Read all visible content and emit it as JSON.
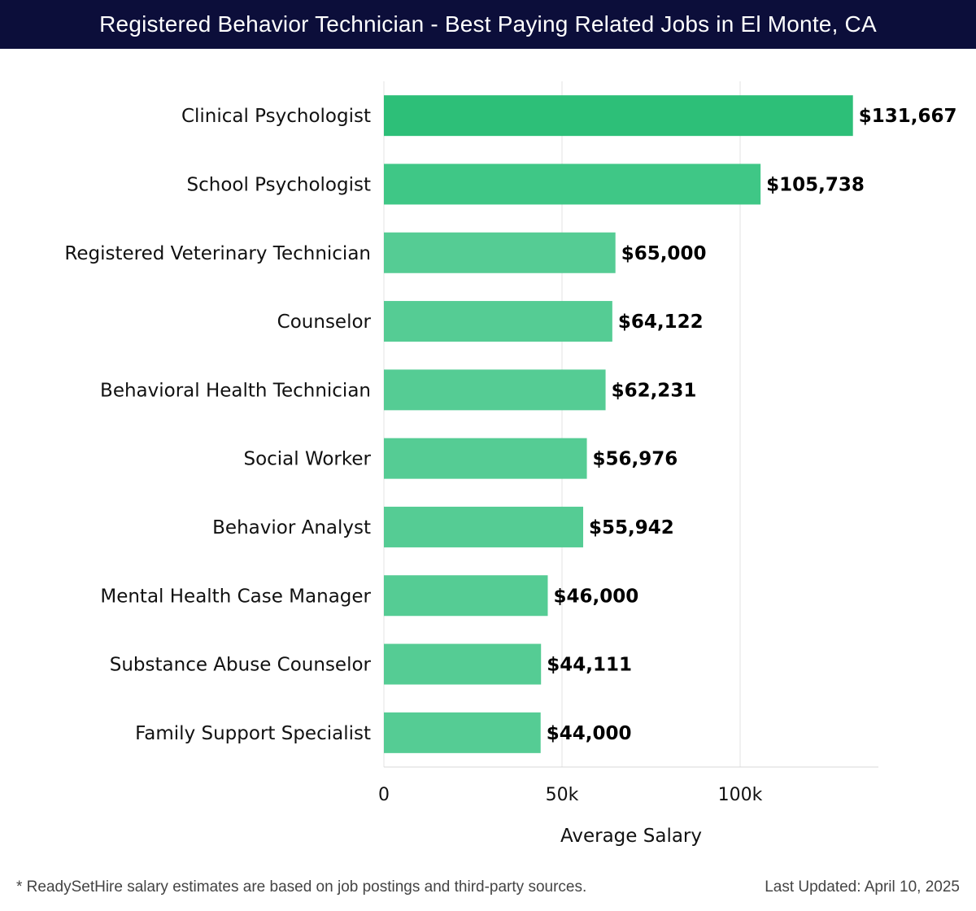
{
  "header": {
    "title": "Registered Behavior Technician - Best Paying Related Jobs in El Monte, CA"
  },
  "footer": {
    "note": "* ReadySetHire salary estimates are based on job postings and third-party sources.",
    "updated": "Last Updated: April 10, 2025"
  },
  "colors": {
    "header_bg": "#0c0e3a",
    "bar_top": "#2dbf78",
    "bar_mid": "#3fc786",
    "bar_rest": "#55cc94",
    "grid": "#e3e3e3"
  },
  "chart_data": {
    "type": "bar",
    "orientation": "horizontal",
    "title": "Registered Behavior Technician - Best Paying Related Jobs in El Monte, CA",
    "xlabel": "Average Salary",
    "ylabel": "",
    "xlim": [
      0,
      139000
    ],
    "xticks": [
      0,
      50000,
      100000
    ],
    "xtick_labels": [
      "0",
      "50k",
      "100k"
    ],
    "grid": true,
    "categories": [
      "Clinical Psychologist",
      "School Psychologist",
      "Registered Veterinary Technician",
      "Counselor",
      "Behavioral Health Technician",
      "Social Worker",
      "Behavior Analyst",
      "Mental Health Case Manager",
      "Substance Abuse Counselor",
      "Family Support Specialist"
    ],
    "values": [
      131667,
      105738,
      65000,
      64122,
      62231,
      56976,
      55942,
      46000,
      44111,
      44000
    ],
    "value_labels": [
      "$131,667",
      "$105,738",
      "$65,000",
      "$64,122",
      "$62,231",
      "$56,976",
      "$55,942",
      "$46,000",
      "$44,111",
      "$44,000"
    ]
  }
}
